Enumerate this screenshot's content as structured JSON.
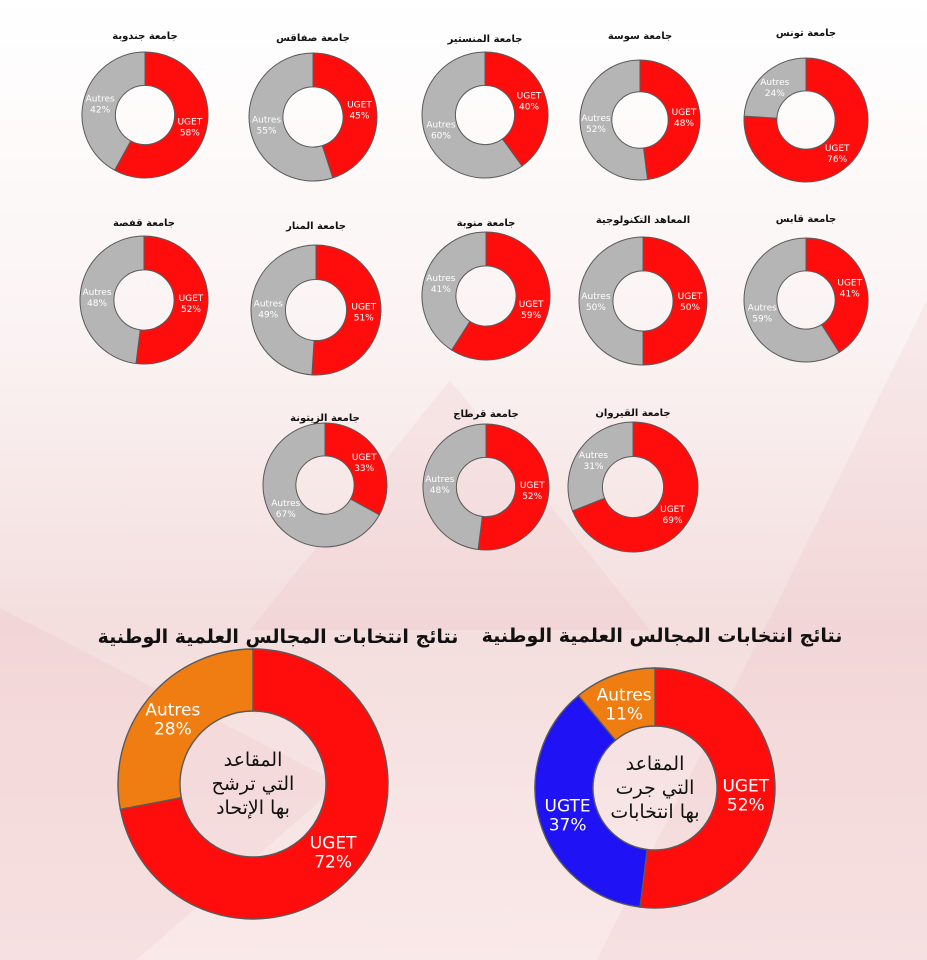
{
  "colors": {
    "uget": "#ff0d0d",
    "autres_gray": "#b5b5b5",
    "autres_orange": "#f07d12",
    "ugte": "#1f12f5",
    "page_bg": "#fbf0f0"
  },
  "chart_data": [
    {
      "type": "pie",
      "title": "جامعة تونس",
      "slices": [
        {
          "label": "UGET",
          "value": 76
        },
        {
          "label": "Autres",
          "value": 24
        }
      ]
    },
    {
      "type": "pie",
      "title": "جامعة سوسة",
      "slices": [
        {
          "label": "UGET",
          "value": 48
        },
        {
          "label": "Autres",
          "value": 52
        }
      ]
    },
    {
      "type": "pie",
      "title": "جامعة المنستير",
      "slices": [
        {
          "label": "UGET",
          "value": 40
        },
        {
          "label": "Autres",
          "value": 60
        }
      ]
    },
    {
      "type": "pie",
      "title": "جامعة صفاقس",
      "slices": [
        {
          "label": "UGET",
          "value": 45
        },
        {
          "label": "Autres",
          "value": 55
        }
      ]
    },
    {
      "type": "pie",
      "title": "جامعة جندوبة",
      "slices": [
        {
          "label": "UGET",
          "value": 58
        },
        {
          "label": "Autres",
          "value": 42
        }
      ]
    },
    {
      "type": "pie",
      "title": "جامعة قابس",
      "slices": [
        {
          "label": "UGET",
          "value": 41
        },
        {
          "label": "Autres",
          "value": 59
        }
      ]
    },
    {
      "type": "pie",
      "title": "المعاهد التكنولوجية",
      "slices": [
        {
          "label": "UGET",
          "value": 50
        },
        {
          "label": "Autres",
          "value": 50
        }
      ]
    },
    {
      "type": "pie",
      "title": "جامعة منوبة",
      "slices": [
        {
          "label": "UGET",
          "value": 59
        },
        {
          "label": "Autres",
          "value": 41
        }
      ]
    },
    {
      "type": "pie",
      "title": "جامعة المنار",
      "slices": [
        {
          "label": "UGET",
          "value": 51
        },
        {
          "label": "Autres",
          "value": 49
        }
      ]
    },
    {
      "type": "pie",
      "title": "جامعة قفصة",
      "slices": [
        {
          "label": "UGET",
          "value": 52
        },
        {
          "label": "Autres",
          "value": 48
        }
      ]
    },
    {
      "type": "pie",
      "title": "جامعة القيروان",
      "slices": [
        {
          "label": "UGET",
          "value": 69
        },
        {
          "label": "Autres",
          "value": 31
        }
      ]
    },
    {
      "type": "pie",
      "title": "جامعة قرطاج",
      "slices": [
        {
          "label": "UGET",
          "value": 52
        },
        {
          "label": "Autres",
          "value": 48
        }
      ]
    },
    {
      "type": "pie",
      "title": "جامعة الزيتونة",
      "slices": [
        {
          "label": "UGET",
          "value": 33
        },
        {
          "label": "Autres",
          "value": 67
        }
      ]
    },
    {
      "type": "pie",
      "title": "نتائج انتخابات المجالس العلمية الوطنية",
      "center_text": [
        "المقاعد",
        "التي جرت",
        "بها انتخابات"
      ],
      "slices": [
        {
          "label": "UGET",
          "value": 52
        },
        {
          "label": "UGTE",
          "value": 37
        },
        {
          "label": "Autres",
          "value": 11
        }
      ]
    },
    {
      "type": "pie",
      "title": "نتائج انتخابات المجالس العلمية الوطنية",
      "center_text": [
        "المقاعد",
        "التي ترشح",
        "بها الإتحاد"
      ],
      "slices": [
        {
          "label": "UGET",
          "value": 72
        },
        {
          "label": "Autres",
          "value": 28
        }
      ]
    }
  ]
}
